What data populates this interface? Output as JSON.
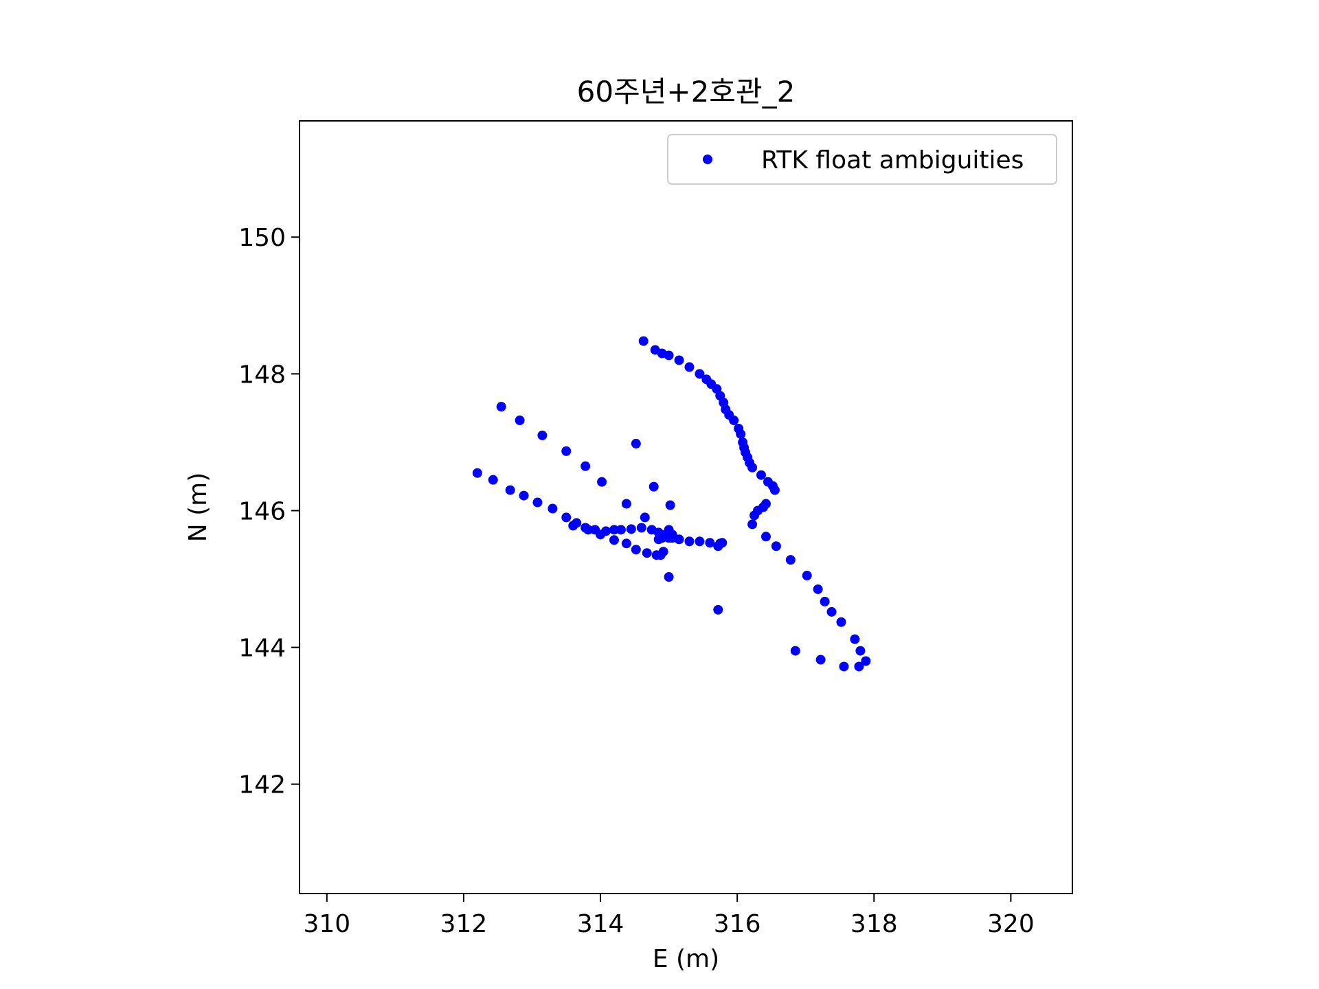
{
  "chart_data": {
    "type": "scatter",
    "title": "60주년+2호관_2",
    "xlabel": "E (m)",
    "ylabel": "N (m)",
    "xlim": [
      309.6,
      320.9
    ],
    "ylim": [
      140.4,
      151.7
    ],
    "xticks": [
      310,
      312,
      314,
      316,
      318,
      320
    ],
    "yticks": [
      142,
      144,
      146,
      148,
      150
    ],
    "grid": false,
    "legend": {
      "position": "top-right"
    },
    "series": [
      {
        "name": "RTK float ambiguities",
        "color": "#0000ff",
        "marker": "circle",
        "x": [
          314.63,
          314.8,
          314.9,
          315.0,
          315.15,
          315.3,
          315.45,
          315.55,
          315.62,
          315.7,
          315.75,
          315.8,
          315.83,
          315.88,
          315.95,
          316.02,
          316.05,
          316.08,
          316.1,
          316.12,
          316.15,
          316.18,
          316.22,
          316.35,
          316.45,
          316.52,
          316.55,
          316.42,
          316.38,
          316.3,
          316.25,
          316.22,
          316.42,
          316.57,
          316.78,
          317.02,
          317.18,
          317.28,
          317.38,
          317.52,
          317.72,
          317.8,
          317.88,
          317.78,
          317.56,
          317.22,
          316.85,
          312.2,
          312.43,
          312.68,
          312.88,
          313.08,
          313.3,
          313.5,
          313.65,
          313.78,
          313.92,
          314.08,
          314.2,
          314.3,
          314.45,
          314.6,
          314.75,
          314.85,
          314.95,
          315.05,
          315.15,
          315.3,
          315.45,
          315.6,
          315.75,
          312.55,
          312.82,
          313.15,
          313.5,
          313.78,
          314.02,
          314.38,
          314.52,
          314.78,
          314.65,
          315.02,
          314.38,
          314.2,
          314.52,
          314.68,
          314.82,
          314.88,
          314.92,
          313.6,
          313.82,
          314.0,
          314.85,
          315.0,
          315.05,
          314.9,
          315.0,
          315.72,
          315.78,
          315.0,
          315.72
        ],
        "y": [
          148.48,
          148.35,
          148.3,
          148.27,
          148.2,
          148.1,
          148.0,
          147.92,
          147.85,
          147.78,
          147.68,
          147.58,
          147.48,
          147.4,
          147.32,
          147.2,
          147.12,
          147.0,
          146.92,
          146.85,
          146.78,
          146.7,
          146.63,
          146.52,
          146.42,
          146.36,
          146.3,
          146.1,
          146.05,
          146.0,
          145.93,
          145.8,
          145.62,
          145.48,
          145.28,
          145.05,
          144.85,
          144.67,
          144.52,
          144.37,
          144.12,
          143.95,
          143.8,
          143.72,
          143.72,
          143.82,
          143.95,
          146.55,
          146.45,
          146.3,
          146.22,
          146.12,
          146.03,
          145.9,
          145.82,
          145.75,
          145.72,
          145.7,
          145.72,
          145.72,
          145.73,
          145.75,
          145.72,
          145.68,
          145.65,
          145.6,
          145.58,
          145.55,
          145.55,
          145.53,
          145.52,
          147.52,
          147.32,
          147.1,
          146.87,
          146.65,
          146.42,
          146.1,
          146.98,
          146.35,
          145.9,
          146.08,
          145.52,
          145.57,
          145.43,
          145.38,
          145.35,
          145.35,
          145.4,
          145.78,
          145.72,
          145.65,
          145.58,
          145.6,
          145.65,
          145.6,
          145.72,
          145.48,
          145.53,
          145.03,
          144.55
        ]
      }
    ]
  }
}
